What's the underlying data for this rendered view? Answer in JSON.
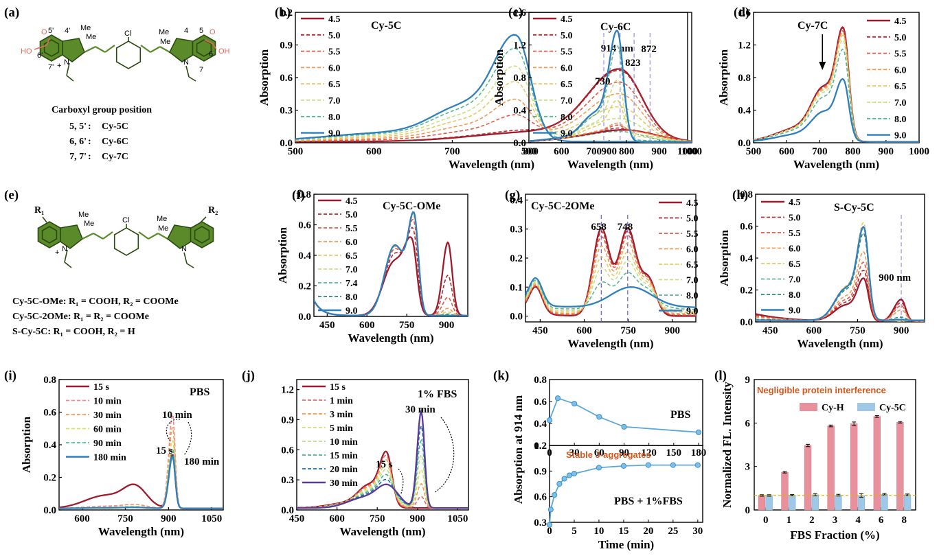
{
  "colors": {
    "ph": [
      "#9e1b2b",
      "#b22a2e",
      "#e05a44",
      "#f29a52",
      "#e6c968",
      "#c8df85",
      "#55b691",
      "#2e8a72",
      "#2f7fbd"
    ],
    "time8": [
      "#9e1b2b",
      "#e06a6a",
      "#f39b4f",
      "#d6df6a",
      "#b7dc86",
      "#47b18e",
      "#1f6ea6",
      "#5a3a98"
    ],
    "time6": [
      "#9e1b2b",
      "#f28a8a",
      "#f39b4f",
      "#d6df6a",
      "#55b691",
      "#2f7fbd"
    ],
    "cyh": "#e8919c",
    "cy5c": "#9ec8e6"
  },
  "structures": {
    "a": {
      "label": "(a)",
      "caption_title": "Carboxyl group position",
      "rows": [
        {
          "pos": "5, 5'",
          "name": "Cy-5C"
        },
        {
          "pos": "6, 6'",
          "name": "Cy-6C"
        },
        {
          "pos": "7, 7'",
          "name": "Cy-7C"
        }
      ],
      "atoms": {
        "oh1": "HO",
        "oh2": "OH",
        "o1": "O",
        "o2": "O",
        "me": "Me",
        "cl": "Cl",
        "n": "N",
        "plus": "+",
        "n5p": "5'",
        "n4p": "4'",
        "n6p": "6'",
        "n7p": "7'",
        "n4": "4",
        "n5": "5",
        "n6": "6",
        "n7": "7"
      }
    },
    "e": {
      "label": "(e)",
      "rows": [
        "Cy-5C-OMe:  R₁ = COOH,  R₂ = COOMe",
        "Cy-5C-2OMe:  R₁ = R₂ = COOMe",
        "S-Cy-5C:  R₁ = COOH,  R₂ = H"
      ],
      "atoms": {
        "r1": "R₁",
        "r2": "R₂",
        "me": "Me",
        "cl": "Cl",
        "n": "N",
        "plus": "+"
      }
    }
  },
  "chart_data": [
    {
      "id": "b",
      "label": "(b)",
      "type": "line",
      "title": "Cy-5C",
      "xlabel": "Wavelength (nm)",
      "ylabel": "Absorption",
      "xlim": [
        500,
        1000
      ],
      "ylim": [
        0,
        1.2
      ],
      "xticks": [
        500,
        600,
        700,
        800,
        900,
        1000
      ],
      "yticks": [
        0.0,
        0.3,
        0.6,
        0.9,
        1.2
      ],
      "legend": "left",
      "legend_title": "pH",
      "series_names": [
        "4.5",
        "5.0",
        "5.5",
        "6.0",
        "6.5",
        "7.0",
        "8.0",
        "9.0"
      ],
      "annotations": [
        {
          "text": "914 nm",
          "x": 914
        }
      ],
      "vlines": [
        914
      ]
    },
    {
      "id": "c",
      "label": "(c)",
      "type": "line",
      "title": "Cy-6C",
      "xlabel": "Wavelength (nm)",
      "ylabel": "Absorption",
      "xlim": [
        500,
        1000
      ],
      "ylim": [
        0,
        1.6
      ],
      "xticks": [
        500,
        600,
        700,
        800,
        900,
        1000
      ],
      "yticks": [
        0.0,
        0.4,
        0.8,
        1.2,
        1.6
      ],
      "legend": "left",
      "series_names": [
        "4.5",
        "5.0",
        "5.5",
        "6.0",
        "6.5",
        "7.0",
        "8.0",
        "9.0"
      ],
      "annotations": [
        {
          "text": "730",
          "x": 730
        },
        {
          "text": "823",
          "x": 823
        },
        {
          "text": "872",
          "x": 872
        }
      ],
      "vlines": [
        730,
        823,
        872
      ]
    },
    {
      "id": "d",
      "label": "(d)",
      "type": "line",
      "title": "Cy-7C",
      "xlabel": "Wavelength (nm)",
      "ylabel": "Absorption",
      "xlim": [
        500,
        1000
      ],
      "ylim": [
        0,
        1.6
      ],
      "xticks": [
        500,
        600,
        700,
        800,
        900,
        1000
      ],
      "yticks": [
        0.0,
        0.4,
        0.8,
        1.2,
        1.6
      ],
      "legend": "right",
      "series_names": [
        "4.5",
        "5.0",
        "5.5",
        "6.0",
        "6.5",
        "7.0",
        "8.0",
        "9.0"
      ]
    },
    {
      "id": "f",
      "label": "(f)",
      "type": "line",
      "title": "Cy-5C-OMe",
      "xlabel": "Wavelength (nm)",
      "ylabel": "Absorption",
      "xlim": [
        400,
        980
      ],
      "ylim": [
        0,
        0.8
      ],
      "xticks": [
        450,
        600,
        750,
        900
      ],
      "yticks": [
        0.0,
        0.2,
        0.4,
        0.6,
        0.8
      ],
      "legend": "left",
      "series_names": [
        "4.5",
        "5.0",
        "5.5",
        "6.0",
        "6.5",
        "7.0",
        "7.4",
        "8.0",
        "9.0"
      ]
    },
    {
      "id": "g",
      "label": "(g)",
      "type": "line",
      "title": "Cy-5C-2OMe",
      "xlabel": "Wavelength (nm)",
      "ylabel": "",
      "xlim": [
        400,
        980
      ],
      "ylim": [
        -0.02,
        0.42
      ],
      "xticks": [
        450,
        600,
        750,
        900
      ],
      "yticks": [
        0.0,
        0.1,
        0.2,
        0.3,
        0.4
      ],
      "legend": "right",
      "series_names": [
        "4.5",
        "5.0",
        "5.5",
        "6.0",
        "6.5",
        "7.0",
        "8.0",
        "9.0"
      ],
      "annotations": [
        {
          "text": "658",
          "x": 658
        },
        {
          "text": "748",
          "x": 748
        }
      ],
      "vlines": [
        658,
        748
      ]
    },
    {
      "id": "h",
      "label": "(h)",
      "type": "line",
      "title": "S-Cy-5C",
      "xlabel": "Wavelength (nm)",
      "ylabel": "Absorption",
      "xlim": [
        400,
        980
      ],
      "ylim": [
        0,
        0.8
      ],
      "xticks": [
        450,
        600,
        750,
        900
      ],
      "yticks": [
        0.0,
        0.2,
        0.4,
        0.6,
        0.8
      ],
      "legend": "left",
      "series_names": [
        "4.5",
        "5.0",
        "5.5",
        "6.0",
        "6.5",
        "7.0",
        "8.0",
        "9.0"
      ],
      "annotations": [
        {
          "text": "900 nm",
          "x": 900
        }
      ],
      "vlines": [
        900
      ]
    },
    {
      "id": "i",
      "label": "(i)",
      "type": "line",
      "title": "PBS",
      "xlabel": "Wavelength (nm)",
      "ylabel": "Absorption",
      "xlim": [
        520,
        1090
      ],
      "ylim": [
        0,
        0.8
      ],
      "xticks": [
        600,
        750,
        900,
        1050
      ],
      "yticks": [
        0.0,
        0.2,
        0.4,
        0.6,
        0.8
      ],
      "legend": "left",
      "series_names": [
        "15 s",
        "10 min",
        "30 min",
        "60 min",
        "90 min",
        "180 min"
      ],
      "annotations": [
        {
          "text": "10 min"
        },
        {
          "text": "15 s"
        },
        {
          "text": "180 min"
        }
      ]
    },
    {
      "id": "j",
      "label": "(j)",
      "type": "line",
      "title": "1% FBS",
      "xlabel": "Wavelength (nm)",
      "ylabel": "",
      "xlim": [
        450,
        1090
      ],
      "ylim": [
        0,
        1.3
      ],
      "xticks": [
        450,
        600,
        750,
        900,
        1050
      ],
      "yticks": [
        0.0,
        0.3,
        0.6,
        0.9,
        1.2
      ],
      "legend": "left",
      "series_names": [
        "15 s",
        "1 min",
        "3 min",
        "5 min",
        "10 min",
        "15 min",
        "20 min",
        "30 min"
      ],
      "annotations": [
        {
          "text": "30 min"
        },
        {
          "text": "15 s"
        }
      ]
    },
    {
      "id": "k",
      "label": "(k)",
      "type": "line",
      "ylabel": "Absorption at 914 nm",
      "xlabel": "Time (min)",
      "top": {
        "title": "PBS",
        "x": [
          0,
          10,
          30,
          60,
          90,
          180
        ],
        "y": [
          0.43,
          0.63,
          0.58,
          0.46,
          0.37,
          0.32
        ],
        "xlim": [
          0,
          185
        ],
        "ylim": [
          0.2,
          0.8
        ],
        "xticks": [
          0,
          30,
          60,
          90,
          120,
          150,
          180
        ],
        "yticks": [
          0.2,
          0.4,
          0.6,
          0.8
        ]
      },
      "bottom": {
        "title": "PBS + 1%FBS",
        "annotation": "Stable J-aggregates",
        "x": [
          0,
          0.25,
          1,
          2,
          3,
          4,
          5,
          10,
          15,
          20,
          25,
          30
        ],
        "y": [
          0.27,
          0.45,
          0.62,
          0.75,
          0.81,
          0.85,
          0.87,
          0.94,
          0.96,
          0.97,
          0.97,
          0.97
        ],
        "xlim": [
          0,
          31
        ],
        "ylim": [
          0.3,
          1.2
        ],
        "xticks": [
          0,
          5,
          10,
          15,
          20,
          25,
          30
        ],
        "yticks": [
          0.3,
          0.6,
          0.9,
          1.2
        ]
      }
    },
    {
      "id": "l",
      "label": "(l)",
      "type": "bar",
      "title": "Negligible protein interference",
      "xlabel": "FBS Fraction (%)",
      "ylabel": "Normalized FL. Intensity",
      "categories": [
        "0",
        "1",
        "2",
        "3",
        "4",
        "6",
        "8"
      ],
      "ylim": [
        0,
        9
      ],
      "yticks": [
        0,
        3,
        6,
        9
      ],
      "series": [
        {
          "name": "Cy-H",
          "values": [
            1.0,
            2.6,
            4.45,
            5.8,
            5.95,
            6.45,
            6.05
          ],
          "err": [
            0.05,
            0.05,
            0.08,
            0.06,
            0.12,
            0.06,
            0.05
          ]
        },
        {
          "name": "Cy-5C",
          "values": [
            1.0,
            1.02,
            1.05,
            1.02,
            1.0,
            1.08,
            1.05
          ],
          "err": [
            0.05,
            0.04,
            0.08,
            0.06,
            0.12,
            0.05,
            0.05
          ]
        }
      ],
      "hline": 1.0
    }
  ]
}
